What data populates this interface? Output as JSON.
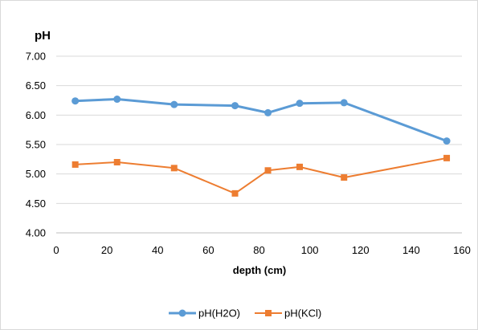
{
  "chart_data": {
    "type": "line",
    "title": "",
    "xlabel": "depth (cm)",
    "ylabel": "pH",
    "xlim": [
      0,
      160
    ],
    "ylim": [
      4.0,
      7.0
    ],
    "x_ticks": [
      0,
      20,
      40,
      60,
      80,
      100,
      120,
      140,
      160
    ],
    "y_ticks": [
      4.0,
      4.5,
      5.0,
      5.5,
      6.0,
      6.5,
      7.0
    ],
    "x_tick_labels": [
      "0",
      "20",
      "40",
      "60",
      "80",
      "100",
      "120",
      "140",
      "160"
    ],
    "y_tick_labels": [
      "4.00",
      "4.50",
      "5.00",
      "5.50",
      "6.00",
      "6.50",
      "7.00"
    ],
    "grid": "horizontal",
    "legend_position": "bottom",
    "series": [
      {
        "name": "pH(H2O)",
        "color": "#5b9bd5",
        "marker": "circle",
        "x": [
          7.5,
          24,
          46.5,
          70.5,
          83.5,
          96,
          113.5,
          154
        ],
        "y": [
          6.24,
          6.27,
          6.18,
          6.16,
          6.04,
          6.2,
          6.21,
          5.56
        ]
      },
      {
        "name": "pH(KCl)",
        "color": "#ed7d31",
        "marker": "square",
        "x": [
          7.5,
          24,
          46.5,
          70.5,
          83.5,
          96,
          113.5,
          154
        ],
        "y": [
          5.16,
          5.2,
          5.1,
          4.67,
          5.06,
          5.12,
          4.94,
          5.27
        ]
      }
    ]
  }
}
